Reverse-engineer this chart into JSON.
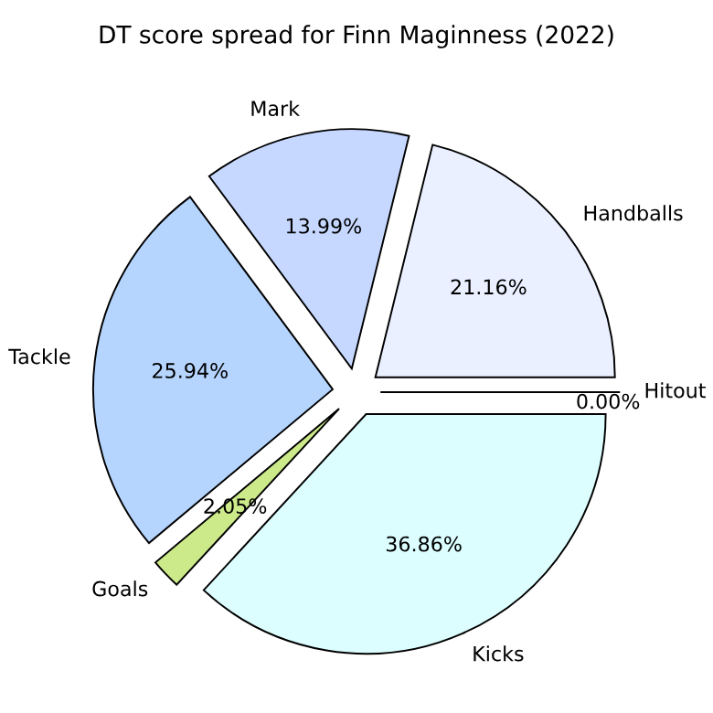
{
  "chart_data": {
    "type": "pie",
    "title": "DT score spread for Finn Maginness (2022)",
    "categories": [
      "Handballs",
      "Mark",
      "Tackle",
      "Goals",
      "Kicks",
      "Hitout"
    ],
    "values": [
      21.16,
      13.99,
      25.94,
      2.05,
      36.86,
      0.0
    ],
    "value_labels": [
      "21.16%",
      "13.99%",
      "25.94%",
      "2.05%",
      "36.86%",
      "0.00%"
    ],
    "colors": [
      "#eaf0ff",
      "#c6d8ff",
      "#b5d5ff",
      "#cdea8a",
      "#dcfeff",
      "#ffffff"
    ]
  }
}
